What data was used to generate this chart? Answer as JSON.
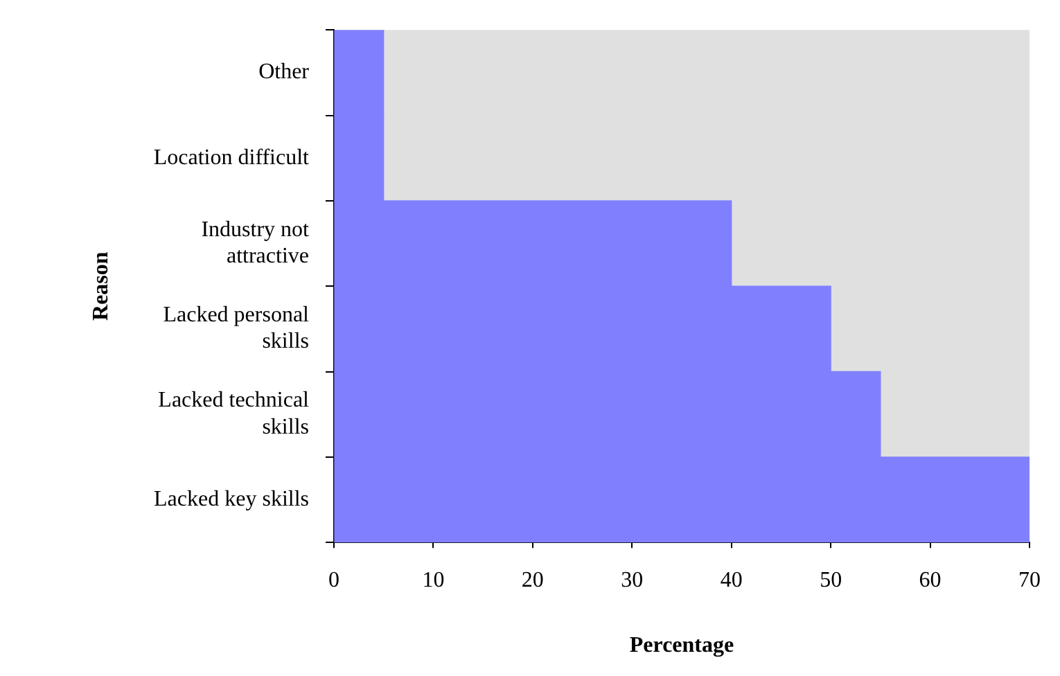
{
  "chart_data": {
    "type": "bar",
    "orientation": "horizontal",
    "xlabel": "Percentage",
    "ylabel": "Reason",
    "categories": [
      "Other",
      "Location difficult",
      "Industry not attractive",
      "Lacked personal skills",
      "Lacked technical skills",
      "Lacked key skills"
    ],
    "values": [
      5,
      5,
      40,
      50,
      55,
      70
    ],
    "color": "#8080ff",
    "xlim": [
      0,
      70
    ],
    "xticks": [
      0,
      10,
      20,
      30,
      40,
      50,
      60,
      70
    ],
    "grid": false,
    "legend": false
  }
}
